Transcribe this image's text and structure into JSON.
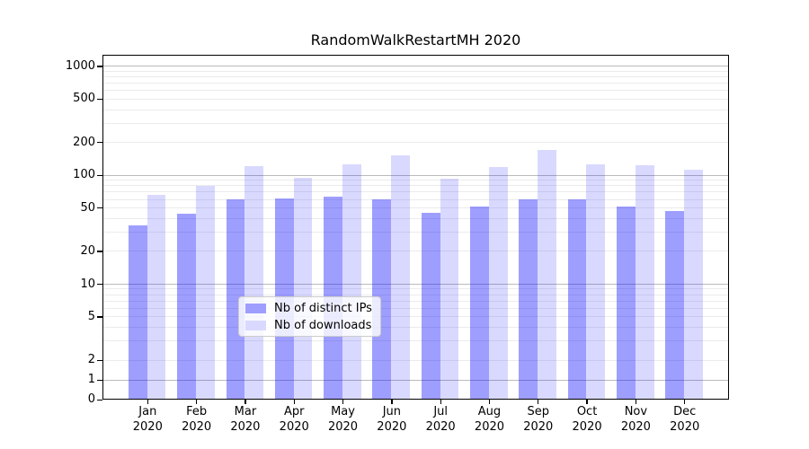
{
  "chart_data": {
    "type": "bar",
    "title": "RandomWalkRestartMH 2020",
    "categories": [
      "Jan 2020",
      "Feb 2020",
      "Mar 2020",
      "Apr 2020",
      "May 2020",
      "Jun 2020",
      "Jul 2020",
      "Aug 2020",
      "Sep 2020",
      "Oct 2020",
      "Nov 2020",
      "Dec 2020"
    ],
    "series": [
      {
        "name": "Nb of distinct IPs",
        "alpha": 0.38,
        "flat_color": "#9e9eff",
        "values": [
          34,
          43,
          59,
          60,
          62,
          59,
          44,
          50,
          59,
          59,
          50,
          46
        ]
      },
      {
        "name": "Nb of downloads",
        "alpha": 0.15,
        "flat_color": "#d9d9ff",
        "values": [
          64,
          78,
          118,
          93,
          124,
          148,
          91,
          116,
          167,
          124,
          120,
          110
        ]
      }
    ],
    "xlabel": "",
    "ylabel": "",
    "yticks": [
      0,
      1,
      2,
      5,
      10,
      20,
      50,
      100,
      200,
      500,
      1000
    ],
    "yscale": "symlog (linear from 0 to 2, logarithmic above 2)",
    "ylim": [
      0,
      1280
    ],
    "grid": "horizontal major and minor gridlines on",
    "legend_position": "lower center",
    "colors": {
      "bar_base": "#0000ff",
      "grid_major": "#bbbbbb",
      "grid_minor": "#ebebeb",
      "spine": "#000000",
      "text": "#000000"
    }
  }
}
